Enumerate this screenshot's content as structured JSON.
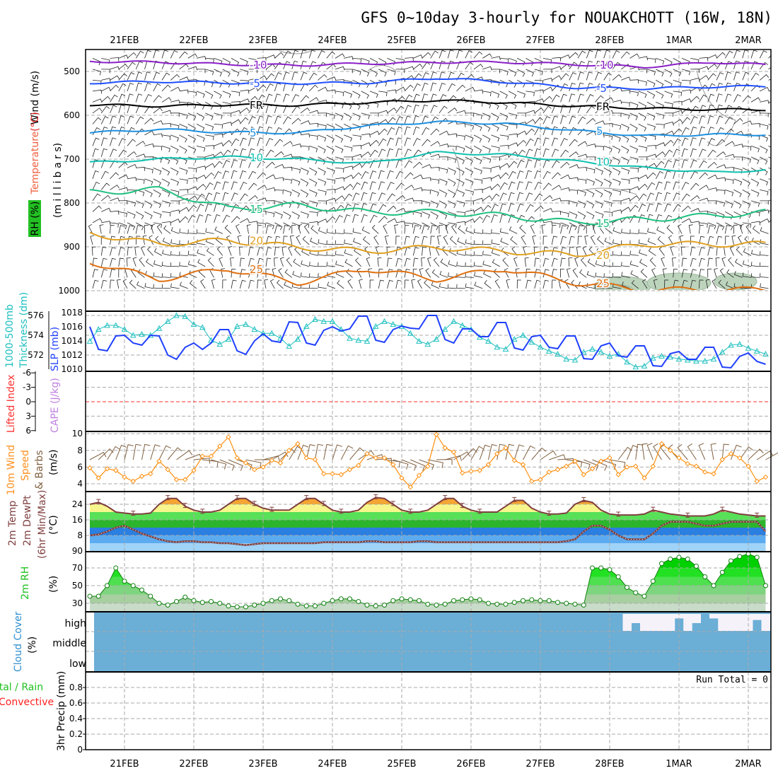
{
  "title": "GFS 0~10day 3-hourly for NOUAKCHOTT (16W, 18N)",
  "chart_data": {
    "type": "line",
    "time": {
      "start": "20FEB 12Z",
      "step_hours": 3,
      "count": 79
    },
    "day_labels": [
      "21FEB",
      "22FEB",
      "23FEB",
      "24FEB",
      "25FEB",
      "26FEB",
      "27FEB",
      "28FEB",
      "1MAR",
      "2MAR"
    ],
    "upper_air": {
      "label_wind": "Wind (m/s)",
      "label_temp": "Temperature",
      "label_temp_unit": "(°C)",
      "label_rh": "RH (%)",
      "label_pressure": "(m i l l i b a r s)",
      "yticks": [
        "500",
        "600",
        "700",
        "800",
        "900",
        "1000"
      ],
      "ylim": [
        450,
        1047
      ],
      "isotherm_node_step_hours": 24,
      "isotherms": [
        {
          "label": "-10",
          "color": "#8a20c8",
          "pressure": [
            477,
            479,
            484,
            486,
            482,
            479,
            479,
            484,
            490,
            479,
            485
          ]
        },
        {
          "label": "-5",
          "color": "#2050ff",
          "pressure": [
            526,
            523,
            526,
            527,
            526,
            515,
            524,
            537,
            539,
            535,
            534
          ]
        },
        {
          "label": "FR",
          "color": "#000000",
          "pressure": [
            576,
            579,
            576,
            577,
            571,
            566,
            571,
            579,
            584,
            587,
            587
          ]
        },
        {
          "label": "5",
          "color": "#1e90e0",
          "pressure": [
            640,
            632,
            639,
            640,
            624,
            615,
            619,
            635,
            647,
            644,
            644
          ]
        },
        {
          "label": "10",
          "color": "#10c0b0",
          "pressure": [
            708,
            700,
            695,
            700,
            710,
            685,
            690,
            705,
            720,
            730,
            725
          ]
        },
        {
          "label": "15",
          "color": "#20c080",
          "pressure": [
            776,
            769,
            813,
            805,
            821,
            821,
            829,
            845,
            837,
            829,
            821
          ]
        },
        {
          "label": "20",
          "color": "#e0a020",
          "pressure": [
            869,
            894,
            885,
            901,
            910,
            901,
            910,
            918,
            894,
            894,
            894
          ]
        },
        {
          "label": "25",
          "color": "#e07010",
          "pressure": [
            934,
            974,
            950,
            982,
            950,
            974,
            950,
            982,
            998,
            998,
            998
          ]
        }
      ]
    },
    "slp_thickness": {
      "label_thickness": "1000-500mb",
      "label_thickness2": "Thickness (dm)",
      "label_slp": "SLP (mb)",
      "thickness_ticks": [
        "576",
        "574",
        "572"
      ],
      "slp_ticks": [
        "1018",
        "1016",
        "1014",
        "1012",
        "1010"
      ],
      "slp_ylim": [
        1010,
        1018
      ],
      "thickness_ylim": [
        571,
        576.2
      ],
      "slp": [
        1016,
        1012.8,
        1012.6,
        1014.7,
        1014.8,
        1013.7,
        1013.4,
        1014.8,
        1014.7,
        1012,
        1011.4,
        1013.1,
        1013.7,
        1012.8,
        1013.7,
        1015.6,
        1015.6,
        1012.6,
        1012.1,
        1014,
        1015,
        1014,
        1013.8,
        1016.7,
        1016.6,
        1013.7,
        1013.4,
        1015.5,
        1016,
        1015.4,
        1015.7,
        1017.5,
        1017.5,
        1014.1,
        1013.8,
        1015.6,
        1016.1,
        1015.8,
        1015.7,
        1017.6,
        1017.6,
        1014.2,
        1013.7,
        1015.7,
        1015.7,
        1014.6,
        1014.6,
        1016.6,
        1016.6,
        1013,
        1012.7,
        1014.6,
        1014.8,
        1013.1,
        1012.9,
        1014.7,
        1014.7,
        1011.5,
        1011.4,
        1013.3,
        1013.7,
        1011.9,
        1011.7,
        1013.3,
        1013.3,
        1010.5,
        1010.4,
        1012.2,
        1012.5,
        1011.4,
        1011.4,
        1013.1,
        1013.1,
        1010.3,
        1010.2,
        1011.8,
        1012.3,
        1011.1,
        1010.7
      ],
      "thickness": [
        573.4,
        574.6,
        575.0,
        575.0,
        574.6,
        574.0,
        574.1,
        574.0,
        574.7,
        575.4,
        576.0,
        575.9,
        575.1,
        574.8,
        573.5,
        573.1,
        573.6,
        574.9,
        575.1,
        574.6,
        574.2,
        574.2,
        573.7,
        572.9,
        573.6,
        574.9,
        575.6,
        575.4,
        575.4,
        574.6,
        573.7,
        573.5,
        573.4,
        574.9,
        575.4,
        575.1,
        574.9,
        574.2,
        573.4,
        573.1,
        573.6,
        574.6,
        575.4,
        575.0,
        574.6,
        573.8,
        573.4,
        572.8,
        572.6,
        573.6,
        574.0,
        573.3,
        572.8,
        572.4,
        572.1,
        571.6,
        571.5,
        572.3,
        572.6,
        572.3,
        571.9,
        572.1,
        571.3,
        570.8,
        570.9,
        571.7,
        571.9,
        571.8,
        571.6,
        571.5,
        571.4,
        571.4,
        571.6,
        572.3,
        573.0,
        573.1,
        572.7,
        572.4,
        572.1
      ]
    },
    "stability": {
      "label_li": "Lifted Index",
      "label_cape": "CAPE (J/kg)",
      "li_ticks": [
        "-6",
        "-3",
        "0",
        "3",
        "6"
      ],
      "li_ylim": [
        -6,
        6
      ]
    },
    "wind10m": {
      "label1": "10m Wind",
      "label2": "Speed",
      "label3": "& Barbs",
      "unit": "(m/s)",
      "yticks": [
        "10",
        "8",
        "6",
        "4"
      ],
      "ylim": [
        3,
        10.1
      ],
      "speed": [
        5.9,
        4.7,
        5.8,
        5.6,
        4.8,
        4.3,
        4.9,
        5.2,
        6.7,
        5.7,
        4.5,
        4.5,
        5.6,
        7.3,
        7.3,
        8.5,
        9.6,
        7.1,
        6.5,
        5.7,
        6.0,
        6.8,
        6.5,
        8.0,
        8.8,
        7.1,
        6.9,
        5.2,
        5.2,
        5.1,
        5.7,
        6.2,
        7.6,
        7.1,
        7.1,
        6.3,
        4.7,
        3.6,
        5.0,
        6.1,
        9.9,
        8.3,
        7.8,
        5.3,
        5.5,
        5.6,
        6.3,
        7.6,
        8.3,
        6.8,
        6.3,
        4.3,
        4.5,
        5.4,
        5.7,
        6.1,
        6.7,
        5.1,
        5.8,
        6.7,
        7.1,
        5.1,
        6.0,
        6.1,
        4.7,
        6.1,
        8.8,
        8.0,
        7.1,
        6.4,
        6.1,
        5.4,
        5.2,
        6.9,
        7.6,
        7.1,
        6.1,
        4.3,
        4.8
      ]
    },
    "temp2m": {
      "label1": "2m Temp",
      "label2": "2m DewPt",
      "label3": "(6hr Min/Max)",
      "unit": "(°C)",
      "yticks": [
        "24",
        "16",
        "8"
      ],
      "bottom_tick": "90",
      "ylim": [
        0,
        30
      ],
      "band_colors": [
        "#9fd3f7",
        "#5cabf0",
        "#2a7fe0",
        "#2cb52c",
        "#58e058",
        "#f6f68c",
        "#f5a532"
      ],
      "temp": [
        24,
        25,
        23,
        20,
        19.5,
        19,
        19,
        19.5,
        24,
        27,
        27,
        23,
        21,
        20,
        20,
        21,
        24,
        27,
        27,
        24,
        22,
        21,
        21,
        21,
        24,
        27,
        27,
        24,
        21,
        20,
        20,
        21,
        25,
        27.5,
        27,
        24,
        21,
        20,
        20,
        21,
        24,
        27,
        27,
        23,
        21,
        20,
        20,
        20,
        23,
        26,
        26,
        22,
        20,
        19,
        19,
        19.5,
        24,
        26,
        25,
        21,
        19,
        18.5,
        18.5,
        18.5,
        19,
        21,
        20,
        19,
        18.5,
        18,
        18,
        18,
        19,
        21,
        20,
        19,
        18.5,
        18,
        18
      ],
      "dewpoint": [
        8,
        8.5,
        10,
        12,
        13,
        11,
        9,
        7.5,
        6,
        5,
        4.5,
        5,
        5,
        4.5,
        4.5,
        4,
        4,
        3.5,
        3,
        3.5,
        4,
        4,
        4,
        4,
        4,
        4,
        4,
        4.5,
        4.5,
        4.5,
        4.5,
        4.5,
        5,
        5,
        4.5,
        4.5,
        4.5,
        4.5,
        5,
        5,
        4.5,
        4.5,
        4.5,
        4.5,
        4.5,
        4.5,
        4.5,
        4.5,
        4.5,
        4.5,
        4.5,
        4.5,
        4.5,
        4.5,
        4.5,
        5,
        6,
        10,
        13,
        13,
        11,
        8,
        6,
        6,
        6,
        9,
        13,
        15,
        15,
        15,
        14,
        13,
        13,
        14,
        15,
        15,
        15,
        15,
        10
      ]
    },
    "rh2m": {
      "label": "2m RH",
      "unit": "(%)",
      "yticks": [
        "70",
        "50",
        "30"
      ],
      "ylim": [
        20,
        90
      ],
      "band_colors": [
        "#c9dcc9",
        "#a7cfa0",
        "#7fd47f",
        "#4fe04f",
        "#22e022",
        "#00d000"
      ],
      "rh": [
        38,
        38,
        50,
        70,
        55,
        50,
        45,
        38,
        30,
        28,
        32,
        37,
        33,
        31,
        32,
        30,
        27,
        26,
        26,
        28,
        30,
        33,
        35,
        33,
        29,
        27,
        27,
        30,
        33,
        35,
        35,
        32,
        28,
        27,
        28,
        33,
        35,
        34,
        33,
        29,
        28,
        29,
        33,
        34,
        35,
        34,
        30,
        29,
        29,
        31,
        33,
        34,
        33,
        33,
        31,
        30,
        29,
        28,
        70,
        70,
        68,
        60,
        48,
        42,
        38,
        55,
        75,
        80,
        82,
        80,
        72,
        60,
        50,
        65,
        78,
        83,
        86,
        82,
        50
      ]
    },
    "cloud": {
      "label": "Cloud Cover",
      "unit": "(%)",
      "levels": [
        "high",
        "middle",
        "low"
      ],
      "color": "#6baed6",
      "high": [
        100,
        100,
        100,
        100,
        100,
        100,
        100,
        100,
        100,
        100,
        100,
        100,
        100,
        100,
        100,
        100,
        100,
        100,
        100,
        100,
        100,
        100,
        100,
        100,
        100,
        100,
        100,
        100,
        100,
        100,
        100,
        100,
        100,
        100,
        100,
        100,
        100,
        100,
        100,
        100,
        100,
        100,
        100,
        100,
        100,
        100,
        100,
        100,
        100,
        100,
        100,
        100,
        100,
        100,
        100,
        100,
        100,
        100,
        100,
        100,
        100,
        100,
        0,
        50,
        0,
        0,
        0,
        0,
        80,
        0,
        50,
        100,
        80,
        0,
        0,
        0,
        0,
        70,
        0
      ],
      "middle": 100,
      "low": 100
    },
    "precip": {
      "label_total": "Total / Rain",
      "label_conv": "Convective",
      "label_axis": "3hr Precip (mm)",
      "yticks": [
        "0.8",
        "0.6",
        "0.4",
        "0.2",
        "0"
      ],
      "run_total": "Run Total = 0",
      "values": []
    }
  }
}
